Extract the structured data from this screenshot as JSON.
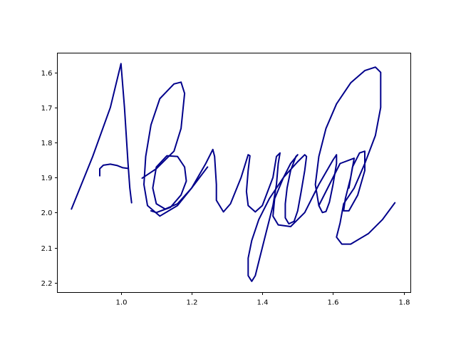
{
  "chart_data": {
    "type": "line",
    "title": "",
    "xlabel": "",
    "ylabel": "",
    "xlim": [
      0.82,
      1.82
    ],
    "ylim": [
      2.228,
      1.545
    ],
    "y_inverted": true,
    "grid": false,
    "legend": "none",
    "x_ticks": [
      {
        "value": 1.0,
        "label": "1.0"
      },
      {
        "value": 1.2,
        "label": "1.2"
      },
      {
        "value": 1.4,
        "label": "1.4"
      },
      {
        "value": 1.6,
        "label": "1.6"
      },
      {
        "value": 1.8,
        "label": "1.8"
      }
    ],
    "y_ticks": [
      {
        "value": 1.6,
        "label": "1.6"
      },
      {
        "value": 1.7,
        "label": "1.7"
      },
      {
        "value": 1.8,
        "label": "1.8"
      },
      {
        "value": 1.9,
        "label": "1.9"
      },
      {
        "value": 2.0,
        "label": "2.0"
      },
      {
        "value": 2.1,
        "label": "2.1"
      },
      {
        "value": 2.2,
        "label": "2.2"
      }
    ],
    "series": [
      {
        "color": "#00008b",
        "strokes": [
          {
            "points": [
              [
                0.86,
                1.99
              ],
              [
                0.92,
                1.84
              ],
              [
                0.97,
                1.7
              ],
              [
                1.0,
                1.575
              ],
              [
                1.01,
                1.7
              ],
              [
                1.02,
                1.86
              ],
              [
                1.025,
                1.93
              ],
              [
                1.03,
                1.972
              ]
            ]
          },
          {
            "points": [
              [
                0.94,
                1.895
              ],
              [
                0.94,
                1.885
              ],
              [
                0.94,
                1.875
              ],
              [
                0.95,
                1.865
              ],
              [
                0.97,
                1.862
              ],
              [
                0.99,
                1.866
              ],
              [
                1.005,
                1.872
              ],
              [
                1.02,
                1.874
              ]
            ]
          },
          {
            "points": [
              [
                1.06,
                1.902
              ],
              [
                1.1,
                1.875
              ],
              [
                1.15,
                1.825
              ],
              [
                1.17,
                1.76
              ],
              [
                1.18,
                1.66
              ],
              [
                1.17,
                1.628
              ],
              [
                1.15,
                1.633
              ],
              [
                1.11,
                1.675
              ],
              [
                1.085,
                1.75
              ],
              [
                1.07,
                1.84
              ],
              [
                1.065,
                1.92
              ],
              [
                1.075,
                1.98
              ],
              [
                1.11,
                2.01
              ],
              [
                1.16,
                1.98
              ],
              [
                1.2,
                1.93
              ],
              [
                1.24,
                1.86
              ],
              [
                1.26,
                1.82
              ],
              [
                1.265,
                1.84
              ],
              [
                1.27,
                1.92
              ],
              [
                1.27,
                1.965
              ],
              [
                1.29,
                1.998
              ],
              [
                1.31,
                1.975
              ],
              [
                1.34,
                1.9
              ],
              [
                1.36,
                1.835
              ],
              [
                1.365,
                1.838
              ],
              [
                1.36,
                1.88
              ],
              [
                1.355,
                1.94
              ],
              [
                1.36,
                1.98
              ],
              [
                1.38,
                1.998
              ],
              [
                1.4,
                1.98
              ],
              [
                1.43,
                1.9
              ],
              [
                1.44,
                1.84
              ],
              [
                1.45,
                1.83
              ],
              [
                1.445,
                1.86
              ],
              [
                1.44,
                1.92
              ],
              [
                1.43,
                1.98
              ],
              [
                1.41,
                2.06
              ],
              [
                1.39,
                2.14
              ],
              [
                1.38,
                2.18
              ],
              [
                1.37,
                2.196
              ],
              [
                1.36,
                2.18
              ],
              [
                1.36,
                2.13
              ],
              [
                1.37,
                2.08
              ],
              [
                1.39,
                2.02
              ],
              [
                1.42,
                1.96
              ],
              [
                1.46,
                1.9
              ],
              [
                1.5,
                1.855
              ],
              [
                1.52,
                1.835
              ],
              [
                1.525,
                1.84
              ],
              [
                1.52,
                1.88
              ],
              [
                1.51,
                1.94
              ],
              [
                1.5,
                1.995
              ],
              [
                1.49,
                2.025
              ],
              [
                1.475,
                2.032
              ],
              [
                1.465,
                2.015
              ],
              [
                1.465,
                1.975
              ],
              [
                1.47,
                1.93
              ],
              [
                1.48,
                1.88
              ],
              [
                1.495,
                1.84
              ],
              [
                1.5,
                1.835
              ],
              [
                1.48,
                1.86
              ],
              [
                1.46,
                1.9
              ],
              [
                1.435,
                1.96
              ],
              [
                1.43,
                2.01
              ],
              [
                1.445,
                2.035
              ],
              [
                1.48,
                2.04
              ],
              [
                1.52,
                2.0
              ],
              [
                1.56,
                1.92
              ],
              [
                1.6,
                1.85
              ],
              [
                1.61,
                1.835
              ],
              [
                1.61,
                1.86
              ],
              [
                1.6,
                1.92
              ],
              [
                1.59,
                1.97
              ],
              [
                1.58,
                1.997
              ],
              [
                1.57,
                2.0
              ],
              [
                1.56,
                1.98
              ],
              [
                1.55,
                1.92
              ],
              [
                1.56,
                1.84
              ],
              [
                1.58,
                1.76
              ],
              [
                1.61,
                1.69
              ],
              [
                1.65,
                1.63
              ],
              [
                1.69,
                1.595
              ],
              [
                1.72,
                1.585
              ],
              [
                1.735,
                1.6
              ],
              [
                1.735,
                1.7
              ],
              [
                1.72,
                1.78
              ],
              [
                1.69,
                1.86
              ],
              [
                1.66,
                1.93
              ],
              [
                1.63,
                1.975
              ],
              [
                1.62,
                2.03
              ],
              [
                1.61,
                2.07
              ],
              [
                1.625,
                2.09
              ],
              [
                1.65,
                2.09
              ],
              [
                1.7,
                2.06
              ],
              [
                1.74,
                2.02
              ],
              [
                1.775,
                1.972
              ]
            ]
          },
          {
            "points": [
              [
                1.56,
                1.98
              ],
              [
                1.59,
                1.92
              ],
              [
                1.62,
                1.86
              ],
              [
                1.66,
                1.845
              ],
              [
                1.65,
                1.9
              ],
              [
                1.635,
                1.96
              ],
              [
                1.63,
                1.995
              ],
              [
                1.645,
                1.995
              ],
              [
                1.67,
                1.95
              ],
              [
                1.69,
                1.88
              ],
              [
                1.69,
                1.825
              ],
              [
                1.675,
                1.83
              ],
              [
                1.655,
                1.87
              ],
              [
                1.645,
                1.93
              ]
            ]
          },
          {
            "points": [
              [
                1.245,
                1.87
              ],
              [
                1.2,
                1.93
              ],
              [
                1.16,
                1.975
              ],
              [
                1.125,
                1.99
              ],
              [
                1.1,
                1.975
              ],
              [
                1.09,
                1.93
              ],
              [
                1.1,
                1.87
              ],
              [
                1.13,
                1.838
              ],
              [
                1.16,
                1.84
              ],
              [
                1.18,
                1.87
              ],
              [
                1.185,
                1.91
              ],
              [
                1.17,
                1.95
              ],
              [
                1.14,
                1.985
              ],
              [
                1.1,
                2.0
              ],
              [
                1.085,
                1.995
              ]
            ]
          }
        ]
      }
    ]
  }
}
